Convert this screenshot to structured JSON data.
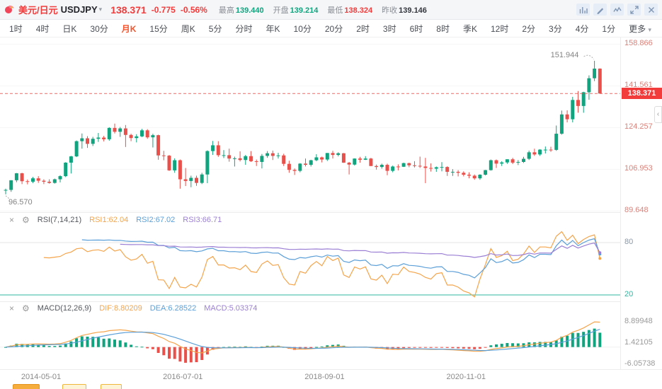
{
  "header": {
    "symbol_cn": "美元/日元",
    "symbol_code": "USDJPY",
    "price": "138.371",
    "change": "-0.775",
    "change_pct": "-0.56%",
    "stats": [
      {
        "key": "high",
        "label": "最高",
        "value": "139.440",
        "color": "#11a37e"
      },
      {
        "key": "open",
        "label": "开盘",
        "value": "139.214",
        "color": "#11a37e"
      },
      {
        "key": "low",
        "label": "最低",
        "value": "138.324",
        "color": "#f23b3b"
      },
      {
        "key": "prev_close",
        "label": "昨收",
        "value": "139.146",
        "color": "#33363c"
      }
    ],
    "icons": [
      "compare-chart",
      "edit-pencil",
      "indicator-signal",
      "fullscreen-expand",
      "close"
    ]
  },
  "timeframe_bar": {
    "items": [
      "1时",
      "4时",
      "日K",
      "30分",
      "月K",
      "15分",
      "周K",
      "5分",
      "分时",
      "年K",
      "10分",
      "20分",
      "2时",
      "3时",
      "6时",
      "8时",
      "季K",
      "12时",
      "2分",
      "3分",
      "4分",
      "1分"
    ],
    "active": "月K",
    "more_label": "更多"
  },
  "colors": {
    "up": "#11a37e",
    "down": "#e8504b",
    "accent_red": "#f23b3b",
    "rsi_lower_line": "#2db5a0",
    "axis_label": "#d9827a"
  },
  "chart_data": [
    {
      "type": "candlestick",
      "symbol": "USDJPY",
      "interval": "月K",
      "y_ticks": [
        "158.866",
        "141.561",
        "124.257",
        "106.953",
        "89.648"
      ],
      "current_price_label": "138.371",
      "high_annotation": "151.944",
      "low_annotation": "96.570",
      "x_labels": [
        "2014-05-01",
        "2016-07-01",
        "2018-09-01",
        "2020-11-01"
      ],
      "candles": [
        [
          "2013-10",
          98.2,
          98.9,
          96.57,
          98.4
        ],
        [
          "2013-11",
          98.4,
          102.4,
          97.6,
          102.4
        ],
        [
          "2013-12",
          102.4,
          105.4,
          101.6,
          105.3
        ],
        [
          "2014-01",
          105.3,
          105.5,
          100.8,
          102.0
        ],
        [
          "2014-02",
          102.0,
          102.7,
          100.7,
          101.8
        ],
        [
          "2014-03",
          101.8,
          103.8,
          101.2,
          103.2
        ],
        [
          "2014-04",
          103.2,
          104.1,
          101.3,
          102.2
        ],
        [
          "2014-05",
          102.2,
          102.8,
          100.8,
          101.8
        ],
        [
          "2014-06",
          101.8,
          102.8,
          101.0,
          101.3
        ],
        [
          "2014-07",
          101.3,
          103.1,
          101.0,
          102.8
        ],
        [
          "2014-08",
          102.8,
          104.5,
          101.5,
          104.1
        ],
        [
          "2014-09",
          104.1,
          109.9,
          103.7,
          109.7
        ],
        [
          "2014-10",
          109.7,
          112.5,
          105.2,
          112.3
        ],
        [
          "2014-11",
          112.3,
          118.9,
          112.0,
          118.6
        ],
        [
          "2014-12",
          118.6,
          121.8,
          115.5,
          119.8
        ],
        [
          "2015-01",
          119.8,
          120.7,
          115.8,
          117.5
        ],
        [
          "2015-02",
          117.5,
          120.4,
          116.6,
          119.6
        ],
        [
          "2015-03",
          119.6,
          122.0,
          118.3,
          120.1
        ],
        [
          "2015-04",
          120.1,
          120.8,
          118.5,
          119.4
        ],
        [
          "2015-05",
          119.4,
          124.4,
          118.8,
          124.1
        ],
        [
          "2015-06",
          124.1,
          125.9,
          121.8,
          122.5
        ],
        [
          "2015-07",
          122.5,
          124.5,
          120.4,
          123.9
        ],
        [
          "2015-08",
          123.9,
          125.3,
          116.2,
          121.2
        ],
        [
          "2015-09",
          121.2,
          121.7,
          118.6,
          119.9
        ],
        [
          "2015-10",
          119.9,
          121.5,
          118.1,
          120.6
        ],
        [
          "2015-11",
          120.6,
          123.7,
          120.3,
          123.1
        ],
        [
          "2015-12",
          123.1,
          123.6,
          119.6,
          120.2
        ],
        [
          "2016-01",
          120.2,
          121.7,
          116.0,
          121.1
        ],
        [
          "2016-02",
          121.1,
          121.3,
          110.9,
          112.7
        ],
        [
          "2016-03",
          112.7,
          114.6,
          110.7,
          112.6
        ],
        [
          "2016-04",
          112.6,
          112.9,
          106.3,
          106.5
        ],
        [
          "2016-05",
          106.5,
          111.5,
          105.5,
          110.7
        ],
        [
          "2016-06",
          110.7,
          111.0,
          98.9,
          102.8
        ],
        [
          "2016-07",
          102.8,
          107.5,
          100.0,
          102.1
        ],
        [
          "2016-08",
          102.1,
          104.3,
          99.5,
          103.4
        ],
        [
          "2016-09",
          103.4,
          104.3,
          100.1,
          101.3
        ],
        [
          "2016-10",
          101.3,
          105.5,
          100.8,
          104.8
        ],
        [
          "2016-11",
          104.8,
          114.8,
          101.2,
          114.5
        ],
        [
          "2016-12",
          114.5,
          118.7,
          112.9,
          116.9
        ],
        [
          "2017-01",
          116.9,
          118.6,
          112.1,
          112.8
        ],
        [
          "2017-02",
          112.8,
          114.9,
          111.6,
          112.8
        ],
        [
          "2017-03",
          112.8,
          115.5,
          110.1,
          111.4
        ],
        [
          "2017-04",
          111.4,
          112.2,
          108.1,
          111.5
        ],
        [
          "2017-05",
          111.5,
          114.4,
          110.2,
          110.8
        ],
        [
          "2017-06",
          110.8,
          112.9,
          108.8,
          112.4
        ],
        [
          "2017-07",
          112.4,
          114.5,
          110.0,
          110.3
        ],
        [
          "2017-08",
          110.3,
          111.0,
          108.3,
          110.0
        ],
        [
          "2017-09",
          110.0,
          113.3,
          107.3,
          112.5
        ],
        [
          "2017-10",
          112.5,
          114.5,
          111.7,
          113.6
        ],
        [
          "2017-11",
          113.6,
          114.7,
          110.8,
          112.5
        ],
        [
          "2017-12",
          112.5,
          113.8,
          111.4,
          112.7
        ],
        [
          "2018-01",
          112.7,
          113.4,
          108.3,
          109.2
        ],
        [
          "2018-02",
          109.2,
          110.5,
          105.5,
          106.7
        ],
        [
          "2018-03",
          106.7,
          107.3,
          104.6,
          106.3
        ],
        [
          "2018-04",
          106.3,
          109.5,
          105.7,
          109.3
        ],
        [
          "2018-05",
          109.3,
          111.4,
          108.1,
          108.8
        ],
        [
          "2018-06",
          108.8,
          110.9,
          108.1,
          110.7
        ],
        [
          "2018-07",
          110.7,
          113.2,
          110.3,
          111.9
        ],
        [
          "2018-08",
          111.9,
          112.2,
          109.8,
          111.0
        ],
        [
          "2018-09",
          111.0,
          113.7,
          110.4,
          113.7
        ],
        [
          "2018-10",
          113.7,
          114.6,
          111.4,
          112.9
        ],
        [
          "2018-11",
          112.9,
          114.0,
          112.3,
          113.6
        ],
        [
          "2018-12",
          113.6,
          113.7,
          109.6,
          109.7
        ],
        [
          "2019-01",
          109.7,
          110.0,
          104.8,
          108.9
        ],
        [
          "2019-02",
          108.9,
          111.5,
          108.5,
          111.4
        ],
        [
          "2019-03",
          111.4,
          112.1,
          109.7,
          110.9
        ],
        [
          "2019-04",
          110.9,
          112.4,
          110.8,
          111.4
        ],
        [
          "2019-05",
          111.4,
          111.7,
          108.3,
          108.3
        ],
        [
          "2019-06",
          108.3,
          108.9,
          106.8,
          107.9
        ],
        [
          "2019-07",
          107.9,
          109.3,
          107.2,
          108.8
        ],
        [
          "2019-08",
          108.8,
          109.3,
          104.5,
          106.3
        ],
        [
          "2019-09",
          106.3,
          108.5,
          105.7,
          108.1
        ],
        [
          "2019-10",
          108.1,
          109.0,
          106.5,
          108.0
        ],
        [
          "2019-11",
          108.0,
          109.7,
          107.9,
          109.5
        ],
        [
          "2019-12",
          109.5,
          109.7,
          107.8,
          108.6
        ],
        [
          "2020-01",
          108.6,
          110.3,
          107.7,
          108.4
        ],
        [
          "2020-02",
          108.4,
          112.2,
          107.5,
          108.1
        ],
        [
          "2020-03",
          108.1,
          111.7,
          101.2,
          107.5
        ],
        [
          "2020-04",
          107.5,
          109.4,
          106.0,
          107.2
        ],
        [
          "2020-05",
          107.2,
          108.1,
          105.9,
          107.8
        ],
        [
          "2020-06",
          107.8,
          109.9,
          106.1,
          107.9
        ],
        [
          "2020-07",
          107.9,
          108.2,
          104.2,
          105.9
        ],
        [
          "2020-08",
          105.9,
          107.0,
          104.2,
          105.9
        ],
        [
          "2020-09",
          105.9,
          106.6,
          104.0,
          105.5
        ],
        [
          "2020-10",
          105.5,
          106.1,
          104.0,
          104.7
        ],
        [
          "2020-11",
          104.7,
          105.7,
          103.2,
          104.3
        ],
        [
          "2020-12",
          104.3,
          104.8,
          102.6,
          103.2
        ],
        [
          "2021-01",
          103.2,
          104.9,
          102.6,
          104.7
        ],
        [
          "2021-02",
          104.7,
          106.7,
          104.4,
          106.6
        ],
        [
          "2021-03",
          106.6,
          111.0,
          106.4,
          110.7
        ],
        [
          "2021-04",
          110.7,
          111.0,
          107.5,
          109.3
        ],
        [
          "2021-05",
          109.3,
          110.3,
          108.3,
          109.8
        ],
        [
          "2021-06",
          109.8,
          111.1,
          109.2,
          111.1
        ],
        [
          "2021-07",
          111.1,
          111.7,
          109.1,
          109.7
        ],
        [
          "2021-08",
          109.7,
          110.8,
          108.7,
          110.0
        ],
        [
          "2021-09",
          110.0,
          112.1,
          109.6,
          111.3
        ],
        [
          "2021-10",
          111.3,
          114.7,
          110.8,
          114.0
        ],
        [
          "2021-11",
          114.0,
          115.5,
          112.5,
          113.1
        ],
        [
          "2021-12",
          113.1,
          115.3,
          112.5,
          115.1
        ],
        [
          "2022-01",
          115.1,
          116.4,
          113.5,
          115.1
        ],
        [
          "2022-02",
          115.1,
          116.3,
          114.2,
          115.0
        ],
        [
          "2022-03",
          115.0,
          125.1,
          114.6,
          121.7
        ],
        [
          "2022-04",
          121.7,
          131.3,
          121.3,
          129.7
        ],
        [
          "2022-05",
          129.7,
          131.4,
          126.4,
          127.7
        ],
        [
          "2022-06",
          127.7,
          137.0,
          126.4,
          135.7
        ],
        [
          "2022-07",
          135.7,
          139.4,
          130.4,
          133.2
        ],
        [
          "2022-08",
          133.2,
          139.1,
          130.4,
          138.9
        ],
        [
          "2022-09",
          138.9,
          145.9,
          135.8,
          144.7
        ],
        [
          "2022-10",
          144.7,
          151.944,
          143.5,
          148.7
        ],
        [
          "2022-11",
          148.7,
          148.8,
          138.324,
          138.371
        ]
      ]
    },
    {
      "type": "line",
      "name": "RSI",
      "param_label": "RSI(7,14,21)",
      "periods": [
        7,
        14,
        21
      ],
      "legend": [
        {
          "label": "RSI1:62.04",
          "color": "#f5a44a"
        },
        {
          "label": "RSI2:67.02",
          "color": "#5b9fd8"
        },
        {
          "label": "RSI3:66.71",
          "color": "#9b7fd4"
        }
      ],
      "levels": {
        "upper": "80",
        "lower": "20"
      }
    },
    {
      "type": "macd",
      "name": "MACD",
      "param_label": "MACD(12,26,9)",
      "params": [
        12,
        26,
        9
      ],
      "legend": [
        {
          "label": "DIF:8.80209",
          "color": "#f5a44a"
        },
        {
          "label": "DEA:6.28522",
          "color": "#5b9fd8"
        },
        {
          "label": "MACD:5.03374",
          "color": "#9b7fd4"
        }
      ],
      "y_ticks": [
        "8.89948",
        "1.42105",
        "-6.05738"
      ]
    }
  ]
}
